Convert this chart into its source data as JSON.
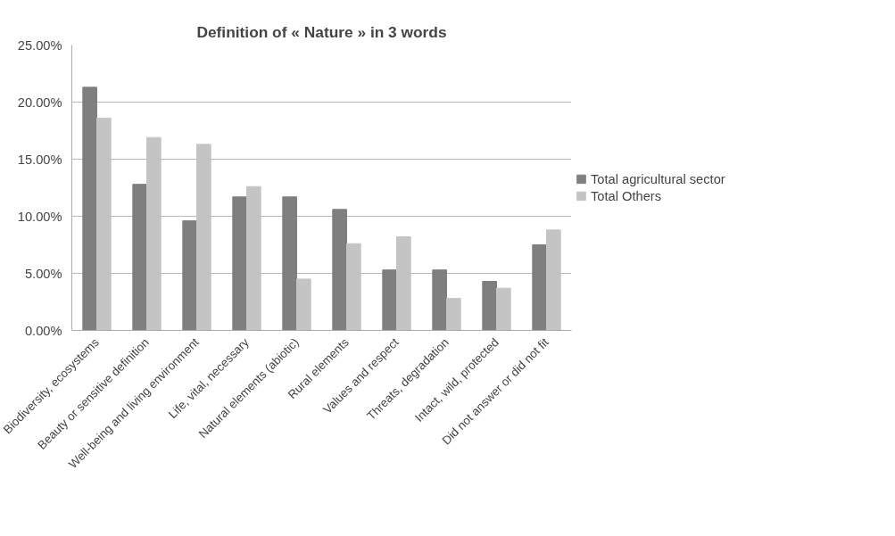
{
  "chart_data": {
    "type": "bar",
    "title": "Definition of « Nature » in 3 words",
    "categories": [
      "Biodiversity, ecosystems",
      "Beauty or sensitive definition",
      "Well-being and living environment",
      "Life, vital, necessary",
      "Natural elements (abiotic)",
      "Rural elements",
      "Values and respect",
      "Threats, degradation",
      "Intact, wild, protected",
      "Did not answer or did not fit"
    ],
    "series": [
      {
        "name": "Total agricultural sector",
        "color": "#7f7f7f",
        "values": [
          21.3,
          12.8,
          9.6,
          11.7,
          11.7,
          10.6,
          5.3,
          5.3,
          4.3,
          7.5
        ]
      },
      {
        "name": "Total Others",
        "color": "#c4c4c4",
        "values": [
          18.6,
          16.9,
          16.3,
          12.6,
          4.5,
          7.6,
          8.2,
          2.8,
          3.7,
          8.8
        ]
      }
    ],
    "ylim": [
      0,
      25
    ],
    "yticks": [
      {
        "value": 0,
        "label": "0.00%"
      },
      {
        "value": 5,
        "label": "5.00%"
      },
      {
        "value": 10,
        "label": "10.00%"
      },
      {
        "value": 15,
        "label": "15.00%"
      },
      {
        "value": 20,
        "label": "20.00%"
      },
      {
        "value": 25,
        "label": "25.00%"
      }
    ],
    "grid": "y",
    "legend": "right"
  }
}
